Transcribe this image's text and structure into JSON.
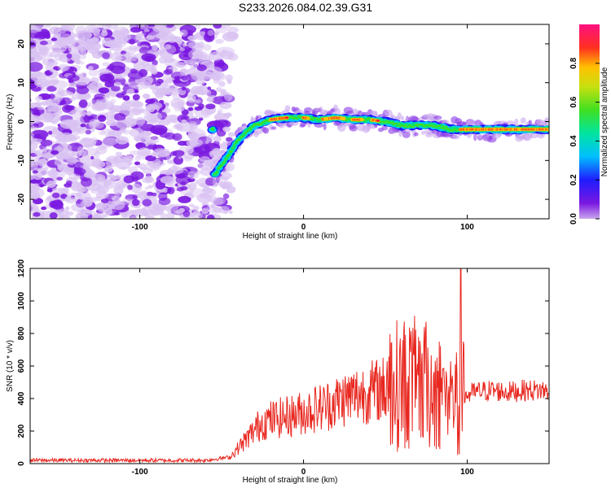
{
  "title": "S233.2026.084.02.39.G31",
  "colors": {
    "noise_light": "#d9c2f2",
    "noise_dark": "#7a18e0",
    "snr_line": "#e8271f",
    "axis": "#000000"
  },
  "chart_data": [
    {
      "type": "heatmap",
      "xlabel": "Height of straight line (km)",
      "ylabel": "Frequency (Hz)",
      "xlim": [
        -167,
        150
      ],
      "ylim": [
        -25,
        25
      ],
      "xticks": [
        -100,
        0,
        100
      ],
      "yticks": [
        -20,
        -10,
        0,
        10,
        20
      ],
      "xtick_labels": [
        "-100",
        "0",
        "100"
      ],
      "ytick_labels": [
        "-20",
        "-10",
        "0",
        "10",
        "20"
      ],
      "colorbar": {
        "label": "Normalized spectral amplitude",
        "range": [
          0.0,
          1.0
        ],
        "ticks": [
          "0.0",
          "0.2",
          "0.4",
          "0.6",
          "0.8"
        ],
        "colormap": "rainbow (violet-blue-cyan-green-yellow-red-magenta)"
      },
      "noise_region_x": [
        -167,
        -50
      ],
      "signal_track": [
        {
          "x": -55,
          "y": -14
        },
        {
          "x": -48,
          "y": -10
        },
        {
          "x": -42,
          "y": -6
        },
        {
          "x": -36,
          "y": -3
        },
        {
          "x": -30,
          "y": -1
        },
        {
          "x": -20,
          "y": 0.5
        },
        {
          "x": -10,
          "y": 1
        },
        {
          "x": 0,
          "y": 1
        },
        {
          "x": 10,
          "y": 0.5
        },
        {
          "x": 20,
          "y": 1
        },
        {
          "x": 30,
          "y": 0.5
        },
        {
          "x": 40,
          "y": 0.5
        },
        {
          "x": 50,
          "y": 0
        },
        {
          "x": 60,
          "y": -1
        },
        {
          "x": 70,
          "y": -1
        },
        {
          "x": 80,
          "y": -1
        },
        {
          "x": 90,
          "y": -2
        },
        {
          "x": 100,
          "y": -2
        },
        {
          "x": 110,
          "y": -2
        },
        {
          "x": 120,
          "y": -2
        },
        {
          "x": 130,
          "y": -2
        },
        {
          "x": 140,
          "y": -2
        },
        {
          "x": 150,
          "y": -2
        }
      ]
    },
    {
      "type": "line",
      "xlabel": "Height of straight line (km)",
      "ylabel": "SNR (10 * v/v)",
      "xlim": [
        -167,
        150
      ],
      "ylim": [
        0,
        1200
      ],
      "xticks": [
        -100,
        0,
        100
      ],
      "yticks": [
        0,
        200,
        400,
        600,
        800,
        1000,
        1200
      ],
      "xtick_labels": [
        "-100",
        "0",
        "100"
      ],
      "ytick_labels": [
        "0",
        "200",
        "400",
        "600",
        "800",
        "1000",
        "1200"
      ],
      "series": [
        {
          "name": "SNR",
          "x": [
            -167,
            -150,
            -100,
            -60,
            -45,
            -35,
            -25,
            -15,
            -5,
            5,
            15,
            25,
            35,
            45,
            55,
            65,
            75,
            85,
            95,
            105,
            115,
            125,
            135,
            150
          ],
          "values": [
            20,
            20,
            20,
            20,
            40,
            150,
            260,
            280,
            300,
            330,
            360,
            400,
            430,
            450,
            480,
            500,
            480,
            430,
            400,
            440,
            450,
            440,
            450,
            450
          ]
        }
      ],
      "spike": {
        "x": 96,
        "y": 1200
      }
    }
  ]
}
